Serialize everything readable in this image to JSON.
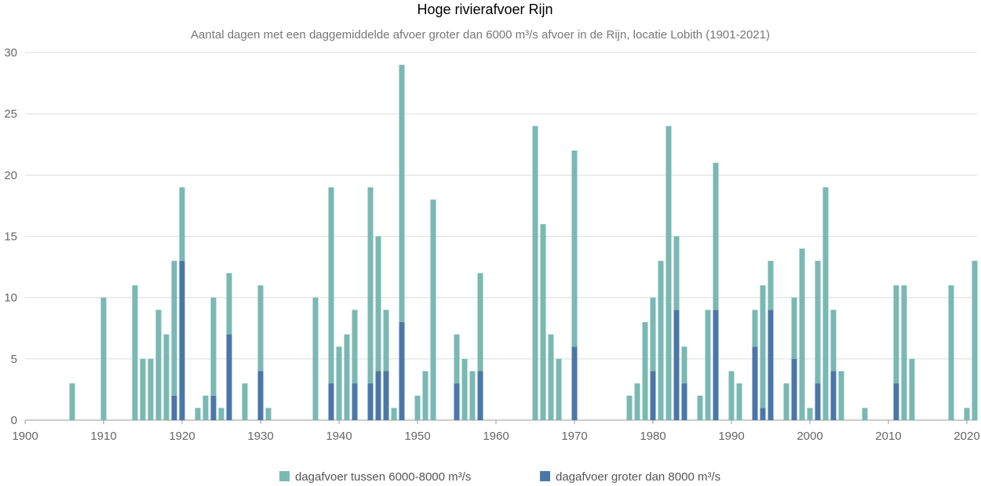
{
  "chart_data": {
    "type": "bar",
    "stacked": true,
    "title": "Hoge rivierafvoer Rijn",
    "subtitle": "Aantal dagen met een daggemiddelde afvoer groter dan 6000 m³/s afvoer in de Rijn, locatie Lobith (1901-2021)",
    "xlabel": "",
    "ylabel": "",
    "xlim": [
      1900,
      2021
    ],
    "ylim": [
      0,
      30
    ],
    "x_ticks": [
      1900,
      1910,
      1920,
      1930,
      1940,
      1950,
      1960,
      1970,
      1980,
      1990,
      2000,
      2010,
      2020
    ],
    "y_ticks": [
      0,
      5,
      10,
      15,
      20,
      25,
      30
    ],
    "grid": true,
    "legend_position": "bottom",
    "colors": {
      "between": "#7ab8b3",
      "above": "#4a77a8"
    },
    "series": [
      {
        "name": "dagafvoer tussen 6000-8000 m³/s",
        "points": [
          [
            1906,
            3
          ],
          [
            1910,
            10
          ],
          [
            1914,
            11
          ],
          [
            1915,
            5
          ],
          [
            1916,
            5
          ],
          [
            1917,
            9
          ],
          [
            1918,
            7
          ],
          [
            1919,
            11
          ],
          [
            1920,
            6
          ],
          [
            1922,
            1
          ],
          [
            1923,
            2
          ],
          [
            1924,
            8
          ],
          [
            1925,
            1
          ],
          [
            1926,
            5
          ],
          [
            1928,
            3
          ],
          [
            1930,
            7
          ],
          [
            1931,
            1
          ],
          [
            1937,
            10
          ],
          [
            1939,
            16
          ],
          [
            1940,
            6
          ],
          [
            1941,
            7
          ],
          [
            1942,
            6
          ],
          [
            1944,
            16
          ],
          [
            1945,
            11
          ],
          [
            1946,
            5
          ],
          [
            1947,
            1
          ],
          [
            1948,
            21
          ],
          [
            1950,
            2
          ],
          [
            1951,
            4
          ],
          [
            1952,
            18
          ],
          [
            1955,
            4
          ],
          [
            1956,
            5
          ],
          [
            1957,
            4
          ],
          [
            1958,
            8
          ],
          [
            1965,
            24
          ],
          [
            1966,
            16
          ],
          [
            1967,
            7
          ],
          [
            1968,
            5
          ],
          [
            1970,
            16
          ],
          [
            1977,
            2
          ],
          [
            1978,
            3
          ],
          [
            1979,
            8
          ],
          [
            1980,
            6
          ],
          [
            1981,
            13
          ],
          [
            1982,
            24
          ],
          [
            1983,
            6
          ],
          [
            1984,
            3
          ],
          [
            1986,
            2
          ],
          [
            1987,
            9
          ],
          [
            1988,
            12
          ],
          [
            1990,
            4
          ],
          [
            1991,
            3
          ],
          [
            1993,
            3
          ],
          [
            1994,
            10
          ],
          [
            1995,
            4
          ],
          [
            1997,
            3
          ],
          [
            1998,
            5
          ],
          [
            1999,
            14
          ],
          [
            2000,
            1
          ],
          [
            2001,
            10
          ],
          [
            2002,
            19
          ],
          [
            2003,
            5
          ],
          [
            2004,
            4
          ],
          [
            2007,
            1
          ],
          [
            2011,
            8
          ],
          [
            2012,
            11
          ],
          [
            2013,
            5
          ],
          [
            2018,
            11
          ],
          [
            2020,
            1
          ],
          [
            2021,
            13
          ]
        ]
      },
      {
        "name": "dagafvoer groter dan 8000 m³/s",
        "points": [
          [
            1919,
            2
          ],
          [
            1920,
            13
          ],
          [
            1924,
            2
          ],
          [
            1926,
            7
          ],
          [
            1930,
            4
          ],
          [
            1939,
            3
          ],
          [
            1942,
            3
          ],
          [
            1944,
            3
          ],
          [
            1945,
            4
          ],
          [
            1946,
            4
          ],
          [
            1948,
            8
          ],
          [
            1955,
            3
          ],
          [
            1958,
            4
          ],
          [
            1970,
            6
          ],
          [
            1980,
            4
          ],
          [
            1983,
            9
          ],
          [
            1984,
            3
          ],
          [
            1988,
            9
          ],
          [
            1993,
            6
          ],
          [
            1994,
            1
          ],
          [
            1995,
            9
          ],
          [
            1998,
            5
          ],
          [
            2001,
            3
          ],
          [
            2003,
            4
          ],
          [
            2011,
            3
          ]
        ]
      }
    ]
  }
}
